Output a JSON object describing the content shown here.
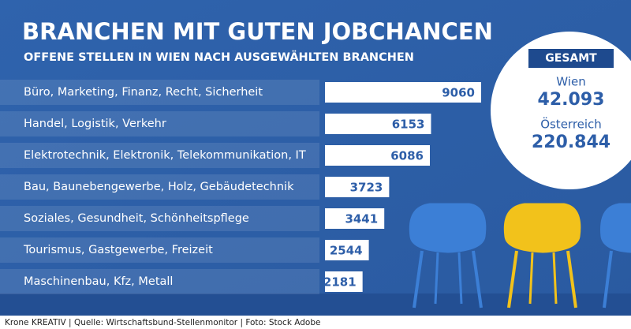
{
  "chart_data": {
    "type": "bar",
    "orientation": "horizontal",
    "title": "BRANCHEN MIT GUTEN JOBCHANCEN",
    "subtitle": "OFFENE STELLEN IN WIEN NACH AUSGEWÄHLTEN BRANCHEN",
    "categories": [
      "Büro, Marketing, Finanz, Recht, Sicherheit",
      "Handel, Logistik, Verkehr",
      "Elektrotechnik, Elektronik, Telekommunikation, IT",
      "Bau, Baunebengewerbe, Holz, Gebäudetechnik",
      "Soziales, Gesundheit, Schönheitspflege",
      "Tourismus, Gastgewerbe, Freizeit",
      "Maschinenbau, Kfz, Metall"
    ],
    "values": [
      9060,
      6153,
      6086,
      3723,
      3441,
      2544,
      2181
    ],
    "color": "#ffffff",
    "label_color": "#2d5ea8",
    "totals": {
      "heading": "GESAMT",
      "items": [
        {
          "name": "Wien",
          "value": "42.093"
        },
        {
          "name": "Österreich",
          "value": "220.844"
        }
      ]
    },
    "footer": "Krone KREATIV | Quelle: Wirtschaftsbund-Stellenmonitor  |  Foto: Stock Adobe"
  }
}
